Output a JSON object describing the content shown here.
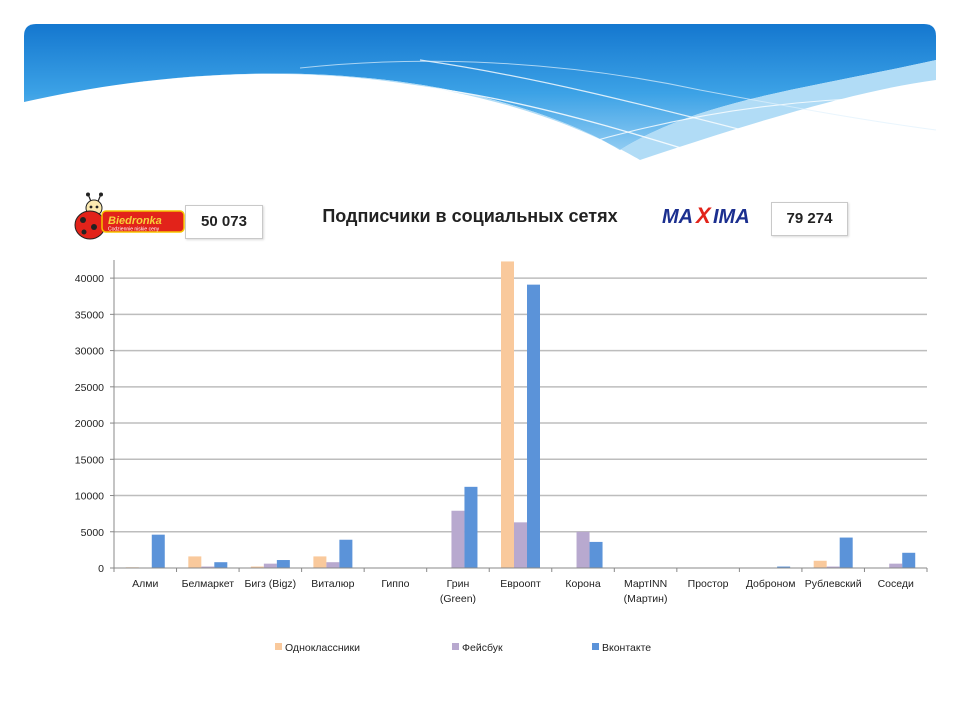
{
  "slide": {
    "biedronka": {
      "brand": "Biedronka",
      "tagline": "Codziennie niskie ceny",
      "count": "50 073"
    },
    "maxima": {
      "brand_left": "MA",
      "brand_x": "X",
      "brand_right": "IMA",
      "count": "79 274"
    }
  },
  "colors": {
    "odnoklassniki": "#f9c99c",
    "facebook": "#b8a9cf",
    "vkontakte": "#5b93d9",
    "grid": "#bdbdbd",
    "banner_top": "#1c86d6",
    "banner_light": "#9fd0f1"
  },
  "chart_data": {
    "type": "bar",
    "title": "Подписчики в социальных сетях",
    "categories": [
      "Алми",
      "Белмаркет",
      "Бигз (Bigz)",
      "Виталюр",
      "Гиппо",
      "Грин (Green)",
      "Евроопт",
      "Корона",
      "МартINN (Мартин)",
      "Простор",
      "Доброном",
      "Рублевский",
      "Соседи"
    ],
    "category_lines": [
      [
        "Алми"
      ],
      [
        "Белмаркет"
      ],
      [
        "Бигз (Bigz)"
      ],
      [
        "Виталюр"
      ],
      [
        "Гиппо"
      ],
      [
        "Грин",
        "(Green)"
      ],
      [
        "Евроопт"
      ],
      [
        "Корона"
      ],
      [
        "МартINN",
        "(Мартин)"
      ],
      [
        "Простор"
      ],
      [
        "Доброном"
      ],
      [
        "Рублевский"
      ],
      [
        "Соседи"
      ]
    ],
    "series": [
      {
        "name": "Одноклассники",
        "values": [
          100,
          1600,
          200,
          1600,
          0,
          0,
          42300,
          0,
          0,
          0,
          0,
          1000,
          0
        ]
      },
      {
        "name": "Фейсбук",
        "values": [
          0,
          200,
          600,
          800,
          0,
          7900,
          6300,
          5000,
          0,
          0,
          0,
          200,
          600
        ]
      },
      {
        "name": "Вконтакте",
        "values": [
          4600,
          800,
          1100,
          3900,
          0,
          11200,
          39100,
          3600,
          0,
          0,
          200,
          4200,
          2100
        ]
      }
    ],
    "ylim": [
      0,
      42500
    ],
    "yticks": [
      0,
      5000,
      10000,
      15000,
      20000,
      25000,
      30000,
      35000,
      40000
    ],
    "grid": true,
    "legend": "bottom"
  }
}
